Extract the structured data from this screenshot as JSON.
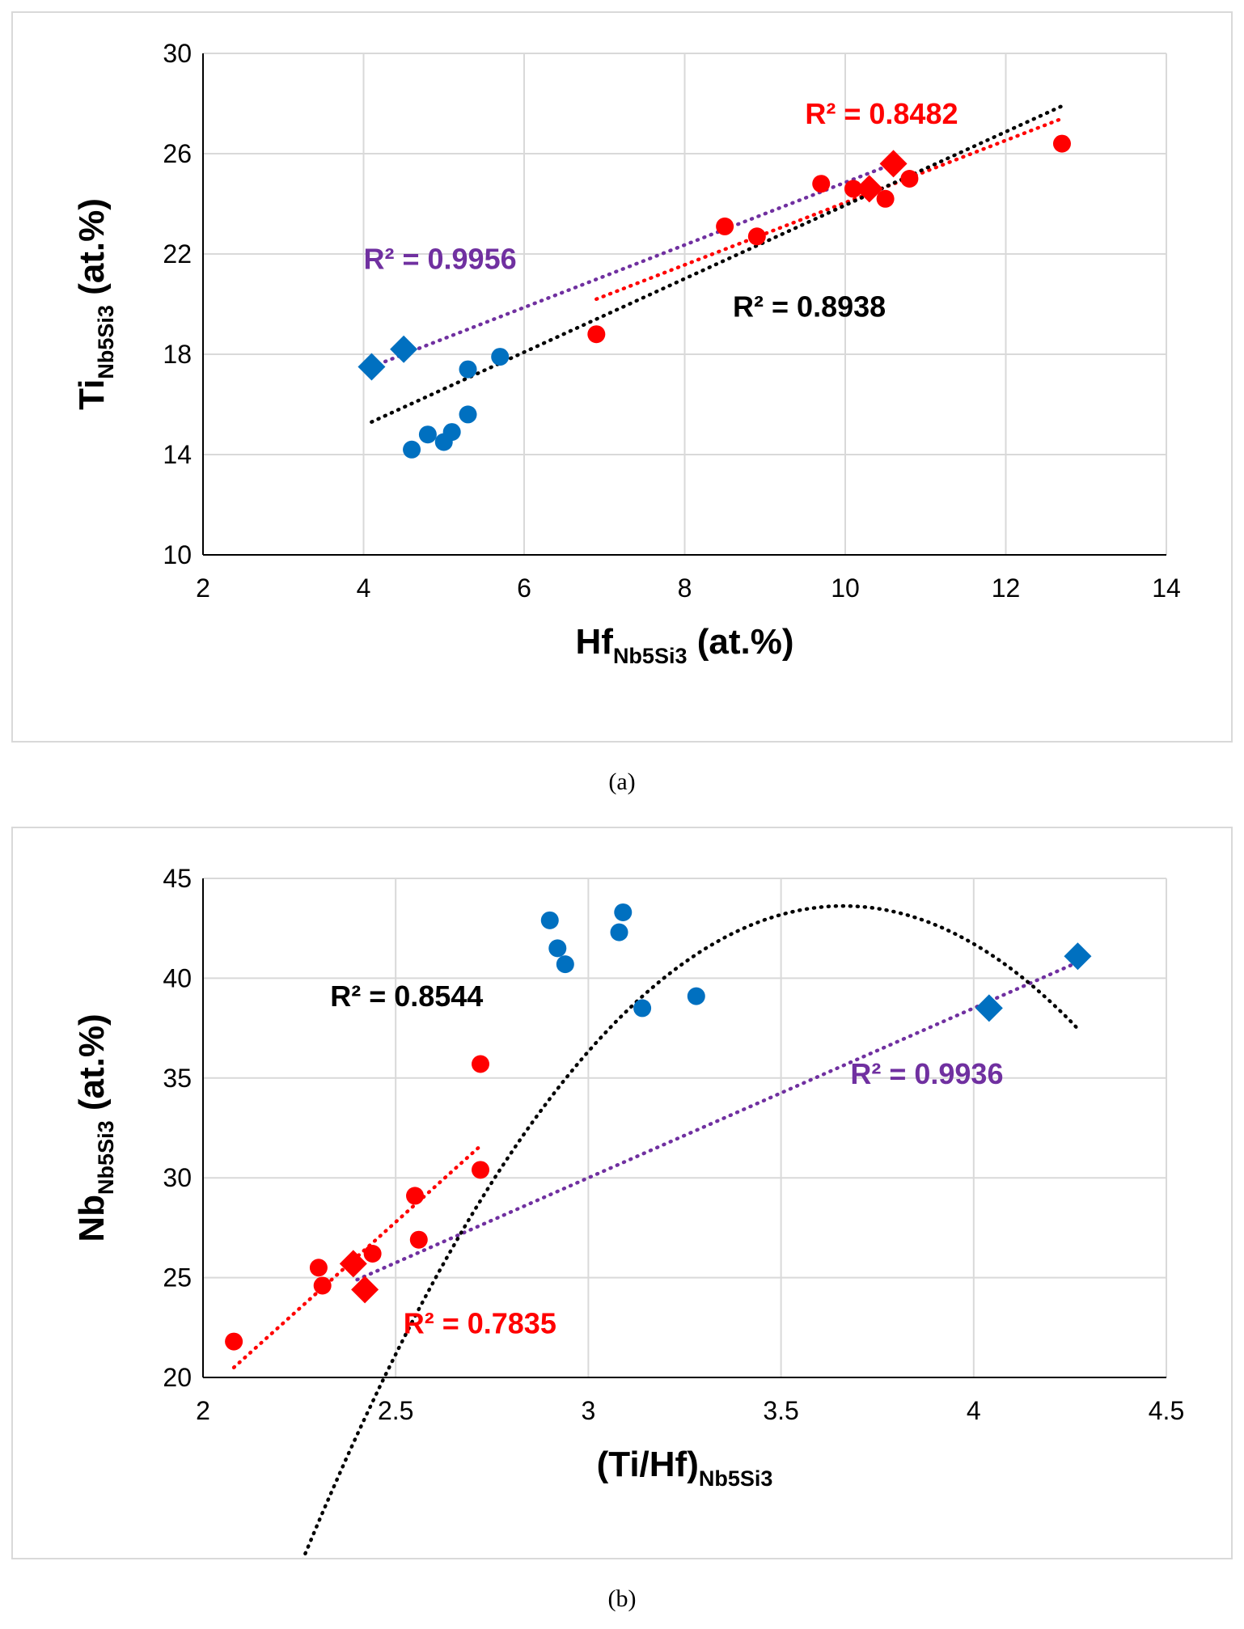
{
  "colors": {
    "blue": "#0070c0",
    "red": "#ff0000",
    "purple": "#7030a0",
    "black": "#000000",
    "grid": "#d9d9d9"
  },
  "captions": {
    "a": "(a)",
    "b": "(b)"
  },
  "chart_data": [
    {
      "id": "a",
      "type": "scatter",
      "title": "",
      "xlabel": {
        "main": "Hf",
        "sub": "Nb5Si3",
        "unit": " (at.%)"
      },
      "ylabel": {
        "main": "Ti",
        "sub": "Nb5Si3",
        "unit": " (at.%)"
      },
      "xlim": [
        2,
        14
      ],
      "ylim": [
        10,
        30
      ],
      "xticks": [
        2,
        4,
        6,
        8,
        10,
        12,
        14
      ],
      "yticks": [
        10,
        14,
        18,
        22,
        26,
        30
      ],
      "xtick_labels": [
        "2",
        "4",
        "6",
        "8",
        "10",
        "12",
        "14"
      ],
      "ytick_labels": [
        "10",
        "14",
        "18",
        "22",
        "26",
        "30"
      ],
      "grid": true,
      "series": [
        {
          "name": "blue-circles",
          "color": "blue",
          "marker": "circle",
          "points": [
            [
              4.6,
              14.2
            ],
            [
              4.8,
              14.8
            ],
            [
              5.0,
              14.5
            ],
            [
              5.1,
              14.9
            ],
            [
              5.3,
              15.6
            ],
            [
              5.3,
              17.4
            ],
            [
              5.7,
              17.9
            ]
          ]
        },
        {
          "name": "blue-diamonds",
          "color": "blue",
          "marker": "diamond",
          "points": [
            [
              4.1,
              17.5
            ],
            [
              4.5,
              18.2
            ]
          ]
        },
        {
          "name": "red-circles",
          "color": "red",
          "marker": "circle",
          "points": [
            [
              6.9,
              18.8
            ],
            [
              8.5,
              23.1
            ],
            [
              8.9,
              22.7
            ],
            [
              9.7,
              24.8
            ],
            [
              10.1,
              24.6
            ],
            [
              10.5,
              24.2
            ],
            [
              10.8,
              25.0
            ],
            [
              12.7,
              26.4
            ]
          ]
        },
        {
          "name": "red-diamonds",
          "color": "red",
          "marker": "diamond",
          "points": [
            [
              10.3,
              24.6
            ],
            [
              10.6,
              25.6
            ]
          ]
        }
      ],
      "trendlines": [
        {
          "color": "purple",
          "label": "R² = 0.9956",
          "points": [
            [
              4.1,
              17.5
            ],
            [
              10.6,
              25.6
            ]
          ]
        },
        {
          "color": "red",
          "label": "R² = 0.8482",
          "points": [
            [
              6.9,
              20.2
            ],
            [
              12.7,
              27.4
            ]
          ]
        },
        {
          "color": "black",
          "label": "R² = 0.8938",
          "points": [
            [
              4.1,
              15.3
            ],
            [
              12.7,
              27.9
            ]
          ]
        }
      ],
      "annotations": [
        {
          "text": "R² = 0.8482",
          "color": "red",
          "x": 9.5,
          "y": 27.2
        },
        {
          "text": "R² = 0.9956",
          "color": "purple",
          "x": 4.0,
          "y": 21.4
        },
        {
          "text": "R² = 0.8938",
          "color": "black",
          "x": 8.6,
          "y": 19.5
        }
      ]
    },
    {
      "id": "b",
      "type": "scatter",
      "title": "",
      "xlabel": {
        "main": "(Ti/Hf)",
        "sub": "Nb5Si3",
        "unit": ""
      },
      "ylabel": {
        "main": "Nb",
        "sub": "Nb5Si3",
        "unit": " (at.%)"
      },
      "xlim": [
        2,
        4.5
      ],
      "ylim": [
        20,
        45
      ],
      "xticks": [
        2,
        2.5,
        3,
        3.5,
        4,
        4.5
      ],
      "yticks": [
        20,
        25,
        30,
        35,
        40,
        45
      ],
      "xtick_labels": [
        "2",
        "2.5",
        "3",
        "3.5",
        "4",
        "4.5"
      ],
      "ytick_labels": [
        "20",
        "25",
        "30",
        "35",
        "40",
        "45"
      ],
      "grid": true,
      "series": [
        {
          "name": "blue-circles",
          "color": "blue",
          "marker": "circle",
          "points": [
            [
              2.9,
              42.9
            ],
            [
              2.92,
              41.5
            ],
            [
              2.94,
              40.7
            ],
            [
              3.08,
              42.3
            ],
            [
              3.09,
              43.3
            ],
            [
              3.14,
              38.5
            ],
            [
              3.28,
              39.1
            ]
          ]
        },
        {
          "name": "blue-diamonds",
          "color": "blue",
          "marker": "diamond",
          "points": [
            [
              4.04,
              38.5
            ],
            [
              4.27,
              41.1
            ]
          ]
        },
        {
          "name": "red-circles",
          "color": "red",
          "marker": "circle",
          "points": [
            [
              2.08,
              21.8
            ],
            [
              2.3,
              25.5
            ],
            [
              2.31,
              24.6
            ],
            [
              2.44,
              26.2
            ],
            [
              2.55,
              29.1
            ],
            [
              2.56,
              26.9
            ],
            [
              2.72,
              30.4
            ],
            [
              2.72,
              35.7
            ]
          ]
        },
        {
          "name": "red-diamonds",
          "color": "red",
          "marker": "diamond",
          "points": [
            [
              2.39,
              25.7
            ],
            [
              2.42,
              24.4
            ]
          ]
        }
      ],
      "trendlines": [
        {
          "color": "purple",
          "label": "R² = 0.9936",
          "points": [
            [
              2.4,
              24.9
            ],
            [
              4.27,
              40.8
            ]
          ]
        },
        {
          "color": "red",
          "label": "R² = 0.7835",
          "points": [
            [
              2.08,
              20.5
            ],
            [
              2.72,
              31.6
            ]
          ]
        },
        {
          "color": "black",
          "label": "R² = 0.8544",
          "type": "poly2",
          "coeffs": [
            -16.63,
            121.8,
            -179.4
          ],
          "range": [
            2.16,
            4.27
          ]
        }
      ],
      "annotations": [
        {
          "text": "R² = 0.8544",
          "color": "black",
          "x": 2.33,
          "y": 38.6
        },
        {
          "text": "R² = 0.9936",
          "color": "purple",
          "x": 3.68,
          "y": 34.7
        },
        {
          "text": "R² = 0.7835",
          "color": "red",
          "x": 2.52,
          "y": 22.2
        }
      ]
    }
  ]
}
